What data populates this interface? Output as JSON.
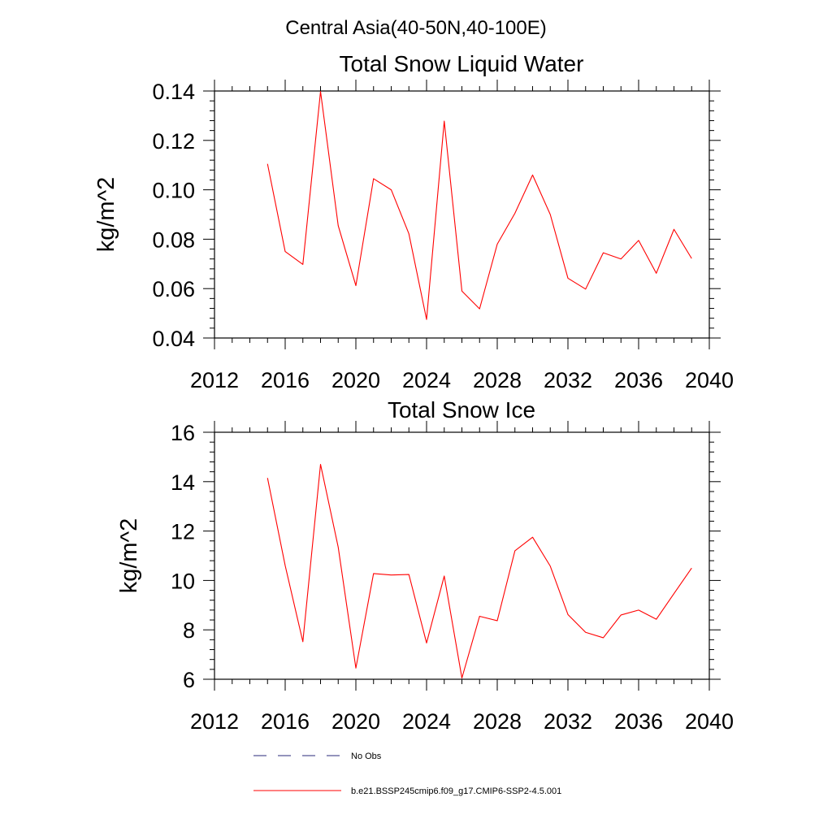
{
  "figure": {
    "title": "Central Asia(40-50N,40-100E)"
  },
  "colors": {
    "series_line": "#ff0000",
    "axes": "#000000",
    "no_obs_dash": "#2a2a7a"
  },
  "legend": {
    "items": [
      {
        "label": "No Obs",
        "style": "dashed",
        "color": "#2a2a7a"
      },
      {
        "label": "b.e21.BSSP245cmip6.f09_g17.CMIP6-SSP2-4.5.001",
        "style": "solid",
        "color": "#ff0000"
      }
    ]
  },
  "chart_data": [
    {
      "type": "line",
      "title": "Total Snow Liquid Water",
      "xlabel": "",
      "ylabel": "kg/m^2",
      "xlim": [
        2012,
        2040
      ],
      "ylim": [
        0.04,
        0.14
      ],
      "xticks": [
        2012,
        2016,
        2020,
        2024,
        2028,
        2032,
        2036,
        2040
      ],
      "xtick_labels": [
        "2012",
        "2016",
        "2020",
        "2024",
        "2028",
        "2032",
        "2036",
        "2040"
      ],
      "yticks": [
        0.04,
        0.06,
        0.08,
        0.1,
        0.12,
        0.14
      ],
      "ytick_labels": [
        "0.04",
        "0.06",
        "0.08",
        "0.10",
        "0.12",
        "0.14"
      ],
      "grid": false,
      "x": [
        2015,
        2016,
        2017,
        2018,
        2019,
        2020,
        2021,
        2022,
        2023,
        2024,
        2025,
        2026,
        2027,
        2028,
        2029,
        2030,
        2031,
        2032,
        2033,
        2034,
        2035,
        2036,
        2037,
        2038,
        2039
      ],
      "series": [
        {
          "name": "b.e21.BSSP245cmip6.f09_g17.CMIP6-SSP2-4.5.001",
          "values": [
            0.1105,
            0.075,
            0.0698,
            0.1398,
            0.0855,
            0.0612,
            0.1045,
            0.1,
            0.0822,
            0.0475,
            0.1278,
            0.059,
            0.0518,
            0.078,
            0.0905,
            0.106,
            0.09,
            0.0642,
            0.0598,
            0.0745,
            0.072,
            0.0795,
            0.0662,
            0.084,
            0.0722
          ]
        }
      ]
    },
    {
      "type": "line",
      "title": "Total Snow Ice",
      "xlabel": "",
      "ylabel": "kg/m^2",
      "xlim": [
        2012,
        2040
      ],
      "ylim": [
        6,
        16
      ],
      "xticks": [
        2012,
        2016,
        2020,
        2024,
        2028,
        2032,
        2036,
        2040
      ],
      "xtick_labels": [
        "2012",
        "2016",
        "2020",
        "2024",
        "2028",
        "2032",
        "2036",
        "2040"
      ],
      "yticks": [
        6,
        8,
        10,
        12,
        14,
        16
      ],
      "ytick_labels": [
        "6",
        "8",
        "10",
        "12",
        "14",
        "16"
      ],
      "grid": false,
      "x": [
        2015,
        2016,
        2017,
        2018,
        2019,
        2020,
        2021,
        2022,
        2023,
        2024,
        2025,
        2026,
        2027,
        2028,
        2029,
        2030,
        2031,
        2032,
        2033,
        2034,
        2035,
        2036,
        2037,
        2038,
        2039
      ],
      "series": [
        {
          "name": "b.e21.BSSP245cmip6.f09_g17.CMIP6-SSP2-4.5.001",
          "values": [
            14.15,
            10.6,
            7.52,
            14.7,
            11.35,
            6.45,
            10.28,
            10.22,
            10.24,
            7.47,
            10.18,
            6.05,
            8.55,
            8.37,
            11.2,
            11.75,
            10.58,
            8.62,
            7.9,
            7.68,
            8.6,
            8.8,
            8.43,
            9.47,
            10.5
          ]
        }
      ]
    }
  ]
}
